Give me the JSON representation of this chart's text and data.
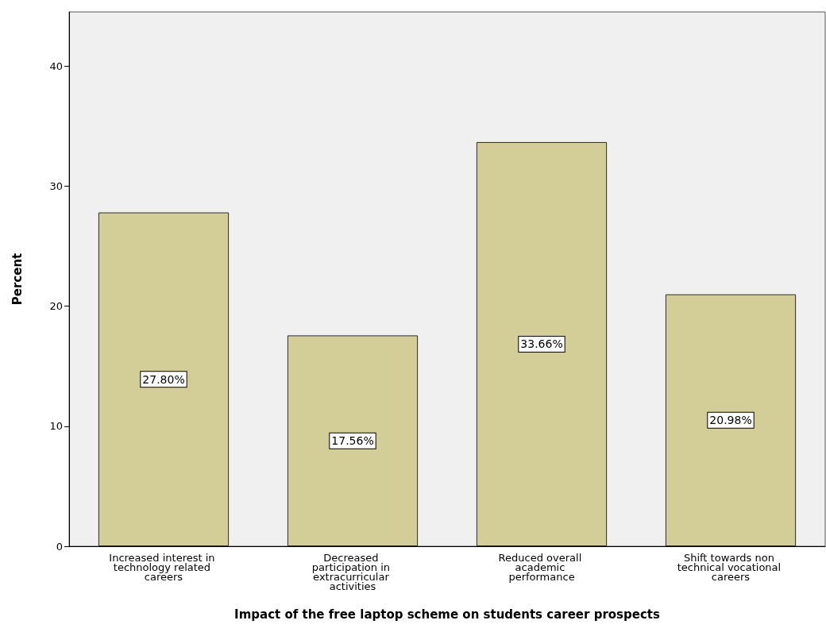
{
  "chart_data": {
    "type": "bar",
    "xlabel": "Impact of the free laptop scheme on students career prospects",
    "ylabel": "Percent",
    "categories": [
      "Increased interest in technology related careers",
      "Decreased participation in extracurricular activities",
      "Reduced overall academic performance",
      "Shift towards non technical vocational careers"
    ],
    "values": [
      27.8,
      17.56,
      33.66,
      20.98
    ],
    "value_labels": [
      "27.80%",
      "17.56%",
      "33.66%",
      "20.98%"
    ],
    "color": "#d3ce98",
    "ylim": [
      0,
      44.5
    ],
    "yticks": [
      0,
      10,
      20,
      30,
      40
    ]
  }
}
